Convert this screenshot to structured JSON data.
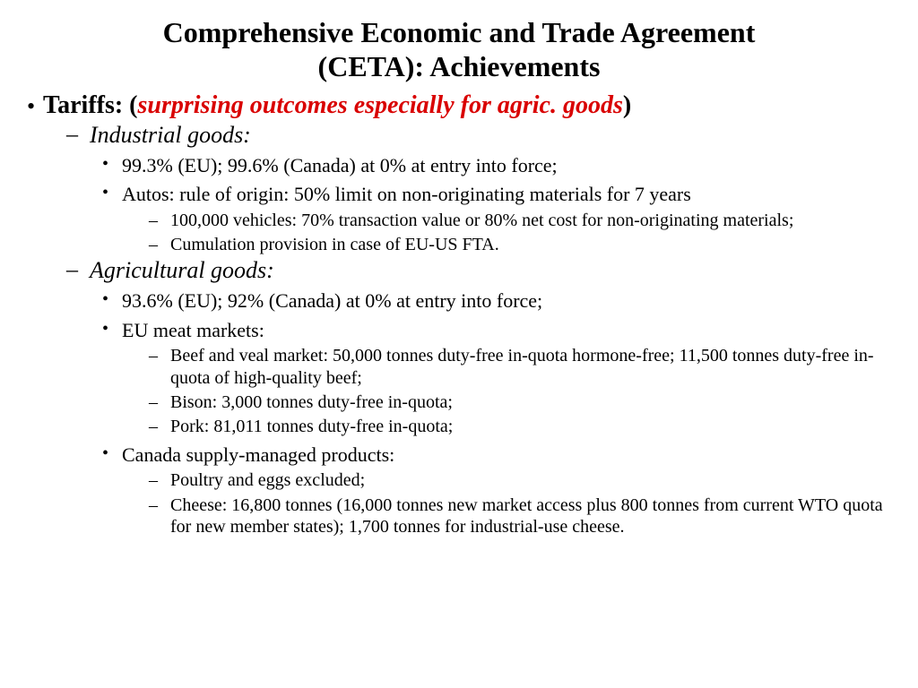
{
  "title_line1": "Comprehensive Economic and Trade Agreement",
  "title_line2": "(CETA): Achievements",
  "colors": {
    "accent_red": "#d90000",
    "text": "#000000",
    "background": "#ffffff"
  },
  "tariffs": {
    "label_prefix": "Tariffs: (",
    "label_emph": "surprising outcomes especially for agric. goods",
    "label_suffix": ")",
    "industrial": {
      "heading": "Industrial goods:",
      "items": [
        "99.3% (EU); 99.6% (Canada) at 0% at entry into force;",
        "Autos: rule of origin: 50% limit on non-originating materials for 7 years"
      ],
      "autos_sub": [
        "100,000 vehicles: 70% transaction value or 80% net cost for non-originating materials;",
        "Cumulation provision in case of EU-US FTA."
      ]
    },
    "agricultural": {
      "heading": "Agricultural goods:",
      "items": [
        "93.6% (EU); 92% (Canada) at 0% at entry into force;",
        "EU meat markets:",
        "Canada supply-managed products:"
      ],
      "eu_meat_sub": [
        "Beef and veal market: 50,000 tonnes duty-free in-quota hormone-free; 11,500 tonnes duty-free in-quota of high-quality beef;",
        "Bison: 3,000 tonnes duty-free in-quota;",
        "Pork: 81,011 tonnes duty-free in-quota;"
      ],
      "canada_sub": [
        "Poultry and eggs excluded;",
        "Cheese: 16,800 tonnes (16,000 tonnes new market access plus 800 tonnes from current WTO quota for new member states); 1,700 tonnes for industrial-use cheese."
      ]
    }
  }
}
